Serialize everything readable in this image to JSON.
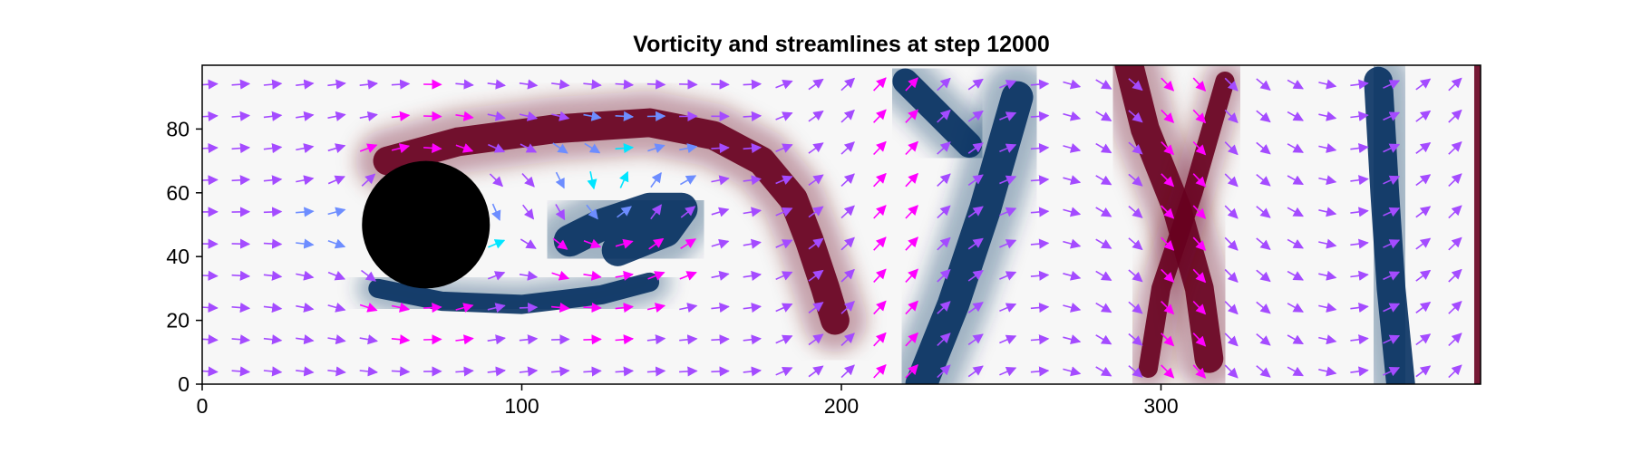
{
  "chart_data": {
    "type": "heatmap",
    "title": "Vorticity and streamlines at step 12000",
    "xlabel": "",
    "ylabel": "",
    "xlim": [
      0,
      400
    ],
    "ylim": [
      0,
      100
    ],
    "x_ticks": [
      0,
      100,
      200,
      300
    ],
    "y_ticks": [
      0,
      20,
      40,
      60,
      80
    ],
    "grid": false,
    "legend": "none",
    "obstacle": {
      "shape": "circle",
      "center": [
        70,
        50
      ],
      "radius": 20,
      "color": "#000000"
    },
    "colormap": {
      "name": "RdBu",
      "negative": "#053061",
      "zero": "#f7f7f7",
      "positive": "#67001f"
    },
    "vorticity_features": [
      {
        "name": "upper shear layer",
        "sign": "positive",
        "path": [
          [
            58,
            70
          ],
          [
            80,
            76
          ],
          [
            110,
            80
          ],
          [
            140,
            82
          ],
          [
            160,
            78
          ],
          [
            175,
            70
          ],
          [
            185,
            58
          ],
          [
            190,
            45
          ],
          [
            195,
            30
          ],
          [
            198,
            20
          ]
        ],
        "width": 9
      },
      {
        "name": "lower shear layer",
        "sign": "negative",
        "path": [
          [
            55,
            30
          ],
          [
            75,
            26
          ],
          [
            100,
            25
          ],
          [
            125,
            28
          ],
          [
            140,
            32
          ]
        ],
        "width": 6
      },
      {
        "name": "recirculation eddy",
        "sign": "negative",
        "path": [
          [
            115,
            45
          ],
          [
            125,
            50
          ],
          [
            140,
            55
          ],
          [
            150,
            55
          ],
          [
            145,
            48
          ],
          [
            130,
            42
          ]
        ],
        "width": 10
      },
      {
        "name": "diagonal band 1",
        "sign": "negative",
        "path": [
          [
            225,
            0
          ],
          [
            235,
            25
          ],
          [
            245,
            55
          ],
          [
            255,
            90
          ]
        ],
        "width": 10
      },
      {
        "name": "upper blob",
        "sign": "negative",
        "path": [
          [
            220,
            95
          ],
          [
            230,
            85
          ],
          [
            240,
            75
          ]
        ],
        "width": 8
      },
      {
        "name": "diagonal band 2",
        "sign": "positive",
        "path": [
          [
            315,
            8
          ],
          [
            312,
            30
          ],
          [
            305,
            55
          ],
          [
            295,
            80
          ],
          [
            290,
            100
          ]
        ],
        "width": 9
      },
      {
        "name": "diagonal band 3",
        "sign": "positive",
        "path": [
          [
            296,
            5
          ],
          [
            300,
            30
          ],
          [
            310,
            60
          ],
          [
            320,
            95
          ]
        ],
        "width": 6
      },
      {
        "name": "right band",
        "sign": "negative",
        "path": [
          [
            375,
            0
          ],
          [
            372,
            30
          ],
          [
            370,
            60
          ],
          [
            368,
            95
          ]
        ],
        "width": 9
      },
      {
        "name": "outlet edge",
        "sign": "positive",
        "path": [
          [
            399,
            0
          ],
          [
            399,
            100
          ]
        ],
        "width": 2
      }
    ],
    "streamlines": {
      "display": "arrows",
      "colormap": [
        "#00e5ff",
        "#6d8dff",
        "#a44bff",
        "#ff00ff"
      ],
      "arrow_grid_spacing": 10
    }
  }
}
